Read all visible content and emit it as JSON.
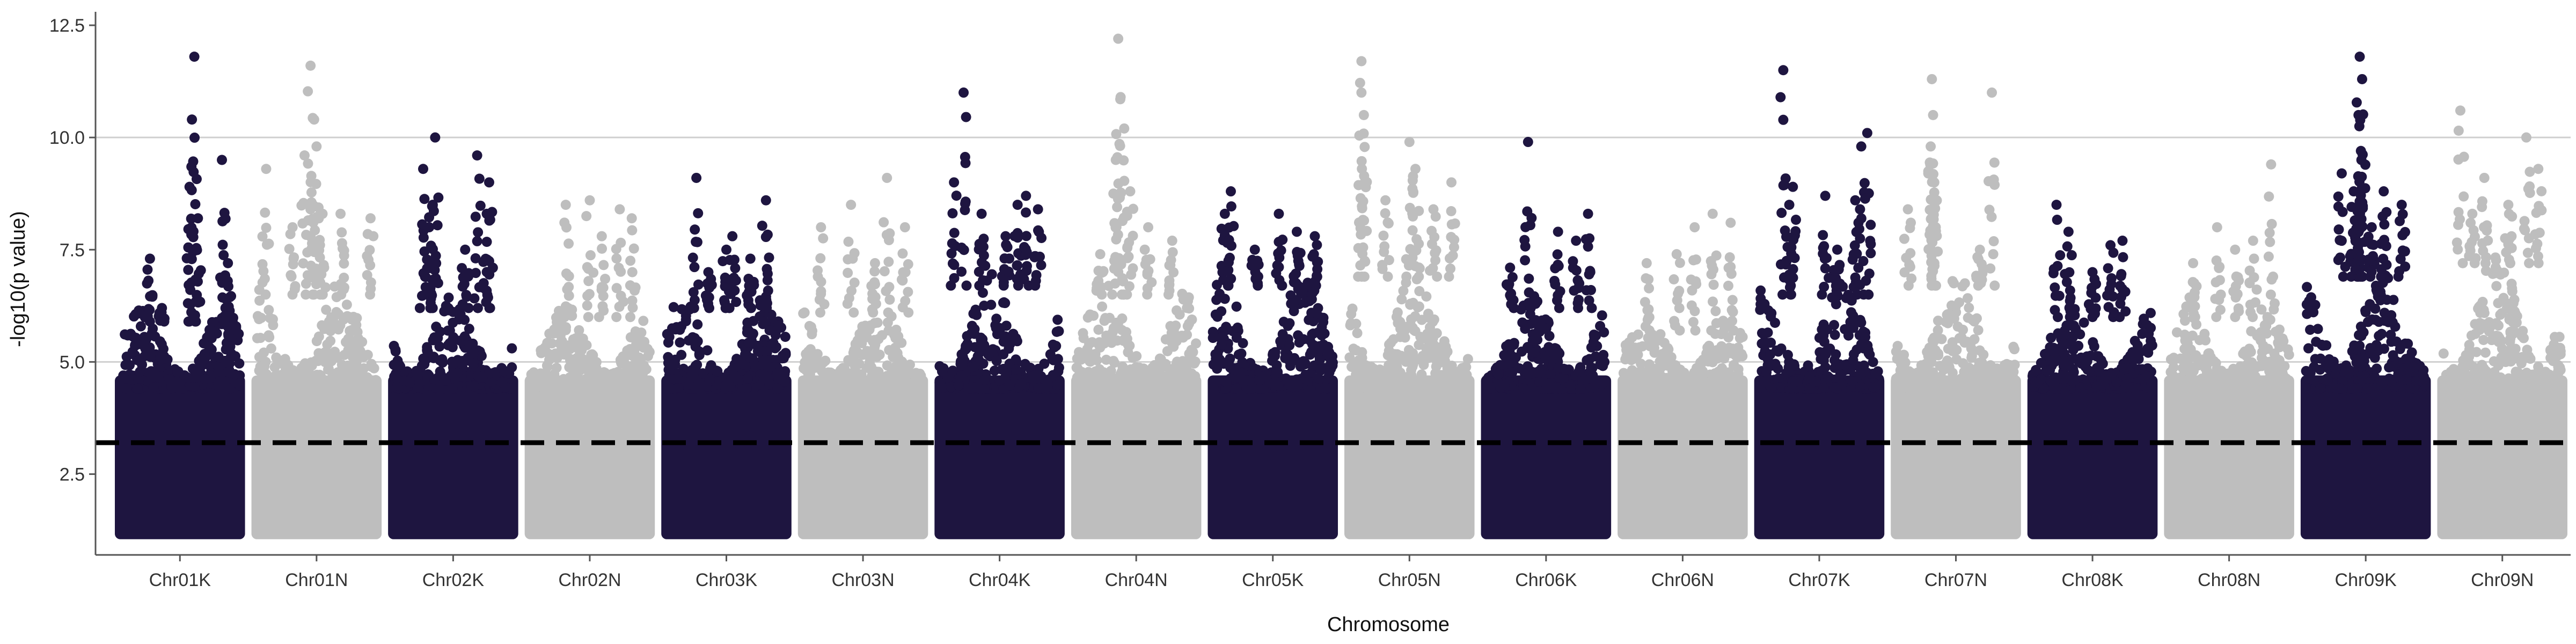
{
  "chart_data": {
    "type": "scatter",
    "subtype": "manhattan",
    "title": "",
    "xlabel": "Chromosome",
    "ylabel": "-log10(p value)",
    "ylim": [
      0.7,
      12.8
    ],
    "yticks": [
      2.5,
      5.0,
      7.5,
      10.0,
      12.5
    ],
    "ytick_labels": [
      "2.5",
      "5.0",
      "7.5",
      "10.0",
      "12.5"
    ],
    "grid": {
      "major_y": true,
      "at": [
        5.0,
        10.0
      ]
    },
    "threshold": {
      "value": 3.2,
      "style": "dashed",
      "color": "#000000"
    },
    "colors": {
      "dark": "#1e1540",
      "light": "#bebebe"
    },
    "categories": [
      "Chr01K",
      "Chr01N",
      "Chr02K",
      "Chr02N",
      "Chr03K",
      "Chr03N",
      "Chr04K",
      "Chr04N",
      "Chr05K",
      "Chr05N",
      "Chr06K",
      "Chr06N",
      "Chr07K",
      "Chr07N",
      "Chr08K",
      "Chr08N",
      "Chr09K",
      "Chr09N"
    ],
    "series": [
      {
        "category": "Chr01K",
        "color": "dark",
        "max": 11.8,
        "dense_top": 6.2,
        "peaks": [
          [
            0.25,
            7.3
          ],
          [
            0.62,
            11.8
          ],
          [
            0.6,
            10.4
          ],
          [
            0.58,
            8.9
          ],
          [
            0.65,
            8.2
          ],
          [
            0.85,
            9.5
          ],
          [
            0.9,
            7.2
          ],
          [
            0.35,
            6.2
          ]
        ]
      },
      {
        "category": "Chr01N",
        "color": "light",
        "max": 11.6,
        "dense_top": 6.8,
        "peaks": [
          [
            0.08,
            9.3
          ],
          [
            0.45,
            11.6
          ],
          [
            0.48,
            10.4
          ],
          [
            0.5,
            9.8
          ],
          [
            0.4,
            9.6
          ],
          [
            0.55,
            8.3
          ],
          [
            0.7,
            8.3
          ],
          [
            0.3,
            8.0
          ],
          [
            0.95,
            8.2
          ]
        ]
      },
      {
        "category": "Chr02K",
        "color": "dark",
        "max": 10.0,
        "dense_top": 6.5,
        "peaks": [
          [
            0.25,
            9.3
          ],
          [
            0.35,
            10.0
          ],
          [
            0.33,
            8.5
          ],
          [
            0.3,
            8.0
          ],
          [
            0.7,
            9.6
          ],
          [
            0.8,
            9.0
          ],
          [
            0.78,
            8.3
          ],
          [
            0.6,
            7.5
          ]
        ]
      },
      {
        "category": "Chr02N",
        "color": "light",
        "max": 8.6,
        "dense_top": 6.3,
        "peaks": [
          [
            0.3,
            8.5
          ],
          [
            0.5,
            8.6
          ],
          [
            0.75,
            8.4
          ],
          [
            0.85,
            8.2
          ],
          [
            0.6,
            7.8
          ]
        ]
      },
      {
        "category": "Chr03K",
        "color": "dark",
        "max": 9.1,
        "dense_top": 6.5,
        "peaks": [
          [
            0.25,
            9.1
          ],
          [
            0.5,
            7.5
          ],
          [
            0.55,
            7.8
          ],
          [
            0.83,
            8.6
          ],
          [
            0.7,
            7.3
          ],
          [
            0.35,
            7.0
          ]
        ]
      },
      {
        "category": "Chr03N",
        "color": "light",
        "max": 9.1,
        "dense_top": 6.4,
        "peaks": [
          [
            0.15,
            8.0
          ],
          [
            0.4,
            8.5
          ],
          [
            0.7,
            9.1
          ],
          [
            0.85,
            8.0
          ],
          [
            0.6,
            7.2
          ]
        ]
      },
      {
        "category": "Chr04K",
        "color": "dark",
        "max": 11.0,
        "dense_top": 7.0,
        "peaks": [
          [
            0.12,
            9.0
          ],
          [
            0.2,
            11.0
          ],
          [
            0.35,
            8.3
          ],
          [
            0.65,
            8.5
          ],
          [
            0.72,
            8.7
          ],
          [
            0.82,
            8.4
          ],
          [
            0.55,
            7.8
          ]
        ]
      },
      {
        "category": "Chr04N",
        "color": "light",
        "max": 12.2,
        "dense_top": 6.8,
        "peaks": [
          [
            0.35,
            12.2
          ],
          [
            0.37,
            10.9
          ],
          [
            0.4,
            10.2
          ],
          [
            0.33,
            9.5
          ],
          [
            0.45,
            8.8
          ],
          [
            0.6,
            8.0
          ],
          [
            0.8,
            7.7
          ],
          [
            0.2,
            7.4
          ]
        ]
      },
      {
        "category": "Chr05K",
        "color": "dark",
        "max": 8.8,
        "dense_top": 7.0,
        "peaks": [
          [
            0.1,
            8.3
          ],
          [
            0.15,
            8.8
          ],
          [
            0.55,
            8.3
          ],
          [
            0.7,
            7.9
          ],
          [
            0.85,
            7.8
          ],
          [
            0.35,
            7.5
          ]
        ]
      },
      {
        "category": "Chr05N",
        "color": "light",
        "max": 11.7,
        "dense_top": 7.2,
        "peaks": [
          [
            0.1,
            11.7
          ],
          [
            0.1,
            11.0
          ],
          [
            0.12,
            10.5
          ],
          [
            0.5,
            9.9
          ],
          [
            0.55,
            9.3
          ],
          [
            0.85,
            9.0
          ],
          [
            0.3,
            8.6
          ],
          [
            0.7,
            8.4
          ]
        ]
      },
      {
        "category": "Chr06K",
        "color": "dark",
        "max": 9.9,
        "dense_top": 6.5,
        "peaks": [
          [
            0.35,
            9.9
          ],
          [
            0.6,
            7.9
          ],
          [
            0.85,
            8.3
          ],
          [
            0.75,
            7.7
          ],
          [
            0.2,
            7.1
          ]
        ]
      },
      {
        "category": "Chr06N",
        "color": "light",
        "max": 8.3,
        "dense_top": 6.0,
        "peaks": [
          [
            0.2,
            7.2
          ],
          [
            0.6,
            8.0
          ],
          [
            0.75,
            8.3
          ],
          [
            0.9,
            8.1
          ],
          [
            0.45,
            7.4
          ]
        ]
      },
      {
        "category": "Chr07K",
        "color": "dark",
        "max": 11.5,
        "dense_top": 6.8,
        "peaks": [
          [
            0.2,
            11.5
          ],
          [
            0.28,
            8.9
          ],
          [
            0.25,
            8.5
          ],
          [
            0.55,
            8.7
          ],
          [
            0.8,
            8.6
          ],
          [
            0.85,
            9.8
          ],
          [
            0.9,
            10.1
          ],
          [
            0.65,
            7.5
          ]
        ]
      },
      {
        "category": "Chr07N",
        "color": "light",
        "max": 11.3,
        "dense_top": 7.0,
        "peaks": [
          [
            0.3,
            11.3
          ],
          [
            0.31,
            10.5
          ],
          [
            0.29,
            9.8
          ],
          [
            0.32,
            9.0
          ],
          [
            0.8,
            11.0
          ],
          [
            0.7,
            7.5
          ],
          [
            0.1,
            8.4
          ]
        ]
      },
      {
        "category": "Chr08K",
        "color": "dark",
        "max": 8.5,
        "dense_top": 6.3,
        "peaks": [
          [
            0.2,
            8.5
          ],
          [
            0.3,
            7.9
          ],
          [
            0.65,
            7.6
          ],
          [
            0.75,
            7.7
          ],
          [
            0.5,
            7.0
          ]
        ]
      },
      {
        "category": "Chr08N",
        "color": "light",
        "max": 9.4,
        "dense_top": 6.3,
        "peaks": [
          [
            0.4,
            8.0
          ],
          [
            0.55,
            7.5
          ],
          [
            0.85,
            9.4
          ],
          [
            0.7,
            7.7
          ],
          [
            0.2,
            7.2
          ]
        ]
      },
      {
        "category": "Chr09K",
        "color": "dark",
        "max": 11.8,
        "dense_top": 7.2,
        "peaks": [
          [
            0.45,
            11.8
          ],
          [
            0.47,
            11.3
          ],
          [
            0.44,
            10.5
          ],
          [
            0.46,
            9.7
          ],
          [
            0.3,
            9.2
          ],
          [
            0.4,
            8.8
          ],
          [
            0.65,
            8.8
          ],
          [
            0.8,
            8.5
          ],
          [
            0.55,
            8.0
          ]
        ]
      },
      {
        "category": "Chr09N",
        "color": "light",
        "max": 10.6,
        "dense_top": 7.5,
        "peaks": [
          [
            0.15,
            10.6
          ],
          [
            0.7,
            10.0
          ],
          [
            0.35,
            9.1
          ],
          [
            0.8,
            9.3
          ],
          [
            0.55,
            8.5
          ],
          [
            0.25,
            8.3
          ]
        ]
      }
    ]
  }
}
